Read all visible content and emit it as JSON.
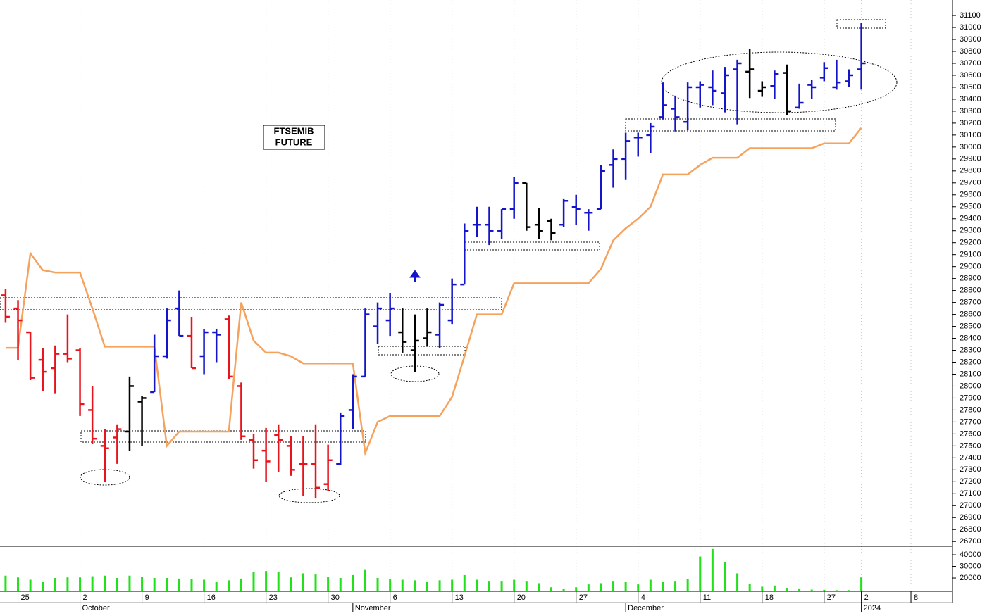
{
  "chart_data": {
    "type": "ohlc",
    "title_lines": [
      "FTSEMIB",
      "FUTURE"
    ],
    "xlim": [
      -0.45,
      76.35
    ],
    "ylim": [
      26660,
      31230
    ],
    "yticks": [
      26700,
      26800,
      26900,
      27000,
      27100,
      27200,
      27300,
      27400,
      27500,
      27600,
      27700,
      27800,
      27900,
      28000,
      28100,
      28200,
      28300,
      28400,
      28500,
      28600,
      28700,
      28800,
      28900,
      29000,
      29100,
      29200,
      29300,
      29400,
      29500,
      29600,
      29700,
      29800,
      29900,
      30000,
      30100,
      30200,
      30300,
      30400,
      30500,
      30600,
      30700,
      30800,
      30900,
      31000,
      31100
    ],
    "xticks": [
      {
        "value": 1,
        "label": "25"
      },
      {
        "value": 6,
        "label": "2"
      },
      {
        "value": 11,
        "label": "9"
      },
      {
        "value": 16,
        "label": "16"
      },
      {
        "value": 21,
        "label": "23"
      },
      {
        "value": 26,
        "label": "30"
      },
      {
        "value": 31,
        "label": "6"
      },
      {
        "value": 36,
        "label": "13"
      },
      {
        "value": 41,
        "label": "20"
      },
      {
        "value": 46,
        "label": "27"
      },
      {
        "value": 51,
        "label": "4"
      },
      {
        "value": 56,
        "label": "11"
      },
      {
        "value": 61,
        "label": "18"
      },
      {
        "value": 66,
        "label": "27"
      },
      {
        "value": 69,
        "label": "2"
      },
      {
        "value": 73,
        "label": "8"
      }
    ],
    "month_ticks": [
      {
        "value": 6,
        "label": "October"
      },
      {
        "value": 28,
        "label": "November"
      },
      {
        "value": 50,
        "label": "December"
      },
      {
        "value": 69,
        "label": "2024"
      }
    ],
    "grid": true,
    "ohlc": [
      [
        28760,
        28810,
        28530,
        28580
      ],
      [
        28650,
        28720,
        28220,
        28550
      ],
      [
        28450,
        28450,
        28050,
        28070
      ],
      [
        28220,
        28320,
        27960,
        28120
      ],
      [
        28150,
        28340,
        27940,
        28270
      ],
      [
        28270,
        28600,
        28200,
        28230
      ],
      [
        28300,
        28320,
        27750,
        27850
      ],
      [
        27800,
        28000,
        27520,
        27560
      ],
      [
        27500,
        27640,
        27200,
        27480
      ],
      [
        27570,
        27680,
        27350,
        27640
      ],
      [
        27620,
        28080,
        27460,
        28000
      ],
      [
        27870,
        27920,
        27500,
        27900
      ],
      [
        27950,
        28430,
        27950,
        28250
      ],
      [
        28250,
        28650,
        28230,
        28550
      ],
      [
        28650,
        28800,
        28420,
        28420
      ],
      [
        28420,
        28580,
        28150,
        28150
      ],
      [
        28250,
        28480,
        28100,
        28450
      ],
      [
        28450,
        28480,
        28200,
        28430
      ],
      [
        28560,
        28590,
        28060,
        28080
      ],
      [
        28000,
        28030,
        27550,
        27580
      ],
      [
        27550,
        27600,
        27310,
        27380
      ],
      [
        27460,
        27650,
        27200,
        27370
      ],
      [
        27590,
        27680,
        27280,
        27550
      ],
      [
        27500,
        27580,
        27250,
        27300
      ],
      [
        27350,
        27580,
        27080,
        27350
      ],
      [
        27350,
        27680,
        27060,
        27150
      ],
      [
        27180,
        27510,
        27120,
        27380
      ],
      [
        27350,
        27780,
        27340,
        27750
      ],
      [
        27800,
        28100,
        27640,
        28080
      ],
      [
        28080,
        28650,
        28080,
        28600
      ],
      [
        28500,
        28700,
        28350,
        28650
      ],
      [
        28550,
        28780,
        28420,
        28650
      ],
      [
        28450,
        28650,
        28280,
        28370
      ],
      [
        28300,
        28600,
        28120,
        28380
      ],
      [
        28400,
        28650,
        28330,
        28450
      ],
      [
        28430,
        28700,
        28320,
        28680
      ],
      [
        28550,
        28900,
        28520,
        28850
      ],
      [
        28850,
        29360,
        28850,
        29300
      ],
      [
        29350,
        29500,
        29250,
        29350
      ],
      [
        29350,
        29500,
        29180,
        29300
      ],
      [
        29300,
        29480,
        29230,
        29480
      ],
      [
        29480,
        29750,
        29400,
        29700
      ],
      [
        29700,
        29700,
        29300,
        29330
      ],
      [
        29350,
        29490,
        29230,
        29300
      ],
      [
        29380,
        29400,
        29220,
        29280
      ],
      [
        29350,
        29570,
        29330,
        29550
      ],
      [
        29500,
        29600,
        29350,
        29480
      ],
      [
        29450,
        29480,
        29300,
        29450
      ],
      [
        29480,
        29850,
        29480,
        29800
      ],
      [
        29850,
        29980,
        29660,
        29900
      ],
      [
        29900,
        30120,
        29730,
        30050
      ],
      [
        30080,
        30120,
        29920,
        30080
      ],
      [
        30100,
        30200,
        29950,
        30170
      ],
      [
        30250,
        30540,
        30230,
        30350
      ],
      [
        30320,
        30430,
        30130,
        30250
      ],
      [
        30210,
        30540,
        30140,
        30500
      ],
      [
        30500,
        30550,
        30330,
        30520
      ],
      [
        30500,
        30640,
        30350,
        30470
      ],
      [
        30450,
        30670,
        30290,
        30600
      ],
      [
        30650,
        30730,
        30190,
        30700
      ],
      [
        30630,
        30820,
        30410,
        30650
      ],
      [
        30470,
        30550,
        30420,
        30500
      ],
      [
        30510,
        30640,
        30400,
        30610
      ],
      [
        30620,
        30690,
        30270,
        30300
      ],
      [
        30330,
        30530,
        30320,
        30370
      ],
      [
        30520,
        30560,
        30400,
        30500
      ],
      [
        30580,
        30710,
        30550,
        30660
      ],
      [
        30500,
        30730,
        30480,
        30540
      ],
      [
        30550,
        30650,
        30500,
        30600
      ],
      [
        30650,
        31040,
        30480,
        30700
      ]
    ],
    "bar_colors": [
      "#e8141c",
      "#e8141c",
      "#e8141c",
      "#e8141c",
      "#e8141c",
      "#e8141c",
      "#e8141c",
      "#e8141c",
      "#e8141c",
      "#e8141c",
      "#000000",
      "#000000",
      "#1414c8",
      "#1414c8",
      "#1414c8",
      "#e8141c",
      "#1414c8",
      "#1414c8",
      "#e8141c",
      "#e8141c",
      "#e8141c",
      "#e8141c",
      "#e8141c",
      "#e8141c",
      "#e8141c",
      "#e8141c",
      "#e8141c",
      "#1414c8",
      "#1414c8",
      "#1414c8",
      "#1414c8",
      "#1414c8",
      "#000000",
      "#000000",
      "#000000",
      "#1414c8",
      "#1414c8",
      "#1414c8",
      "#1414c8",
      "#1414c8",
      "#1414c8",
      "#1414c8",
      "#000000",
      "#000000",
      "#000000",
      "#1414c8",
      "#1414c8",
      "#1414c8",
      "#1414c8",
      "#1414c8",
      "#1414c8",
      "#1414c8",
      "#1414c8",
      "#1414c8",
      "#1414c8",
      "#1414c8",
      "#1414c8",
      "#1414c8",
      "#1414c8",
      "#1414c8",
      "#000000",
      "#000000",
      "#1414c8",
      "#000000",
      "#1414c8",
      "#1414c8",
      "#1414c8",
      "#1414c8",
      "#1414c8",
      "#1414c8"
    ],
    "stop_line": {
      "color": "#f5a25d",
      "values": [
        28320,
        28320,
        29110,
        28970,
        28950,
        28950,
        28950,
        28650,
        28330,
        28330,
        28330,
        28330,
        28330,
        27500,
        27620,
        27620,
        27620,
        27620,
        27620,
        28700,
        28380,
        28280,
        28280,
        28250,
        28190,
        28190,
        28190,
        28190,
        28190,
        27440,
        27700,
        27750,
        27750,
        27750,
        27750,
        27750,
        27910,
        28250,
        28600,
        28600,
        28600,
        28860,
        28860,
        28860,
        28860,
        28860,
        28860,
        28860,
        28980,
        29220,
        29320,
        29400,
        29500,
        29770,
        29770,
        29770,
        29850,
        29910,
        29910,
        29910,
        29990,
        29990,
        29990,
        29990,
        29990,
        29990,
        30030,
        30030,
        30030,
        30160
      ]
    },
    "volume": {
      "color": "#22e01a",
      "ylim": [
        8500,
        47300
      ],
      "yticks": [
        {
          "value": 20000,
          "label": "20000"
        },
        {
          "value": 30000,
          "label": "30000"
        },
        {
          "value": 40000,
          "label": "40000"
        }
      ],
      "values": [
        22000,
        20500,
        18500,
        17000,
        20000,
        20500,
        20500,
        21500,
        22000,
        20000,
        22000,
        21000,
        20000,
        20000,
        19500,
        19000,
        18500,
        17000,
        18000,
        19500,
        25500,
        26000,
        25500,
        20500,
        24000,
        23000,
        21000,
        20000,
        22500,
        27500,
        20000,
        19000,
        18500,
        18000,
        17000,
        18000,
        18500,
        22500,
        18500,
        17500,
        17500,
        18500,
        17500,
        15500,
        12000,
        10500,
        12000,
        14500,
        15500,
        17500,
        17000,
        14500,
        18500,
        16500,
        17500,
        19000,
        38500,
        45000,
        34000,
        24000,
        15000,
        12500,
        13500,
        11500,
        11000,
        10000,
        9800,
        9500,
        9500,
        20500
      ]
    }
  }
}
